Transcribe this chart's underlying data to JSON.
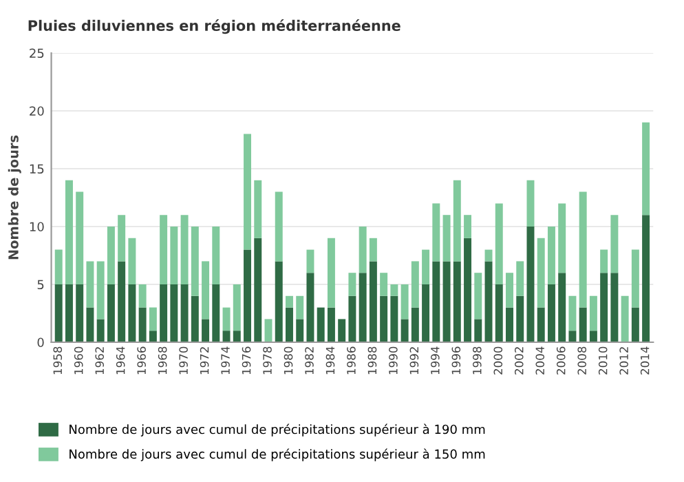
{
  "chart_data": {
    "type": "bar",
    "title": "Pluies diluviennes en région méditerranéenne",
    "ylabel": "Nombre de jours",
    "categories": [
      "1958",
      null,
      "1960",
      null,
      "1962",
      null,
      "1964",
      null,
      "1966",
      null,
      "1968",
      null,
      "1970",
      null,
      "1972",
      null,
      "1974",
      null,
      "1976",
      null,
      "1978",
      null,
      "1980",
      null,
      "1982",
      null,
      "1984",
      null,
      "1986",
      null,
      "1988",
      null,
      "1990",
      null,
      "1992",
      null,
      "1994",
      null,
      "1996",
      null,
      "1998",
      null,
      "2000",
      null,
      "2002",
      null,
      "2004",
      null,
      "2006",
      null,
      "2008",
      null,
      "2010",
      null,
      "2012",
      null,
      "2014"
    ],
    "stacked": true,
    "series": [
      {
        "name": "Nombre de jours avec cumul de précipitations supérieur à 190 mm",
        "color": "#2f6b45",
        "values": [
          5,
          5,
          5,
          3,
          2,
          5,
          7,
          5,
          3,
          1,
          5,
          5,
          5,
          4,
          2,
          5,
          1,
          1,
          8,
          9,
          0,
          7,
          3,
          2,
          6,
          3,
          3,
          2,
          4,
          6,
          7,
          4,
          4,
          2,
          3,
          5,
          7,
          7,
          7,
          9,
          2,
          7,
          5,
          3,
          4,
          10,
          3,
          5,
          6,
          1,
          3,
          1,
          6,
          6,
          0,
          3,
          11
        ]
      },
      {
        "name": "Nombre de jours avec cumul de précipitations supérieur à 150 mm",
        "color": "#80c99c",
        "values": [
          3,
          9,
          8,
          4,
          5,
          5,
          4,
          4,
          2,
          2,
          6,
          5,
          6,
          6,
          5,
          5,
          2,
          4,
          10,
          5,
          2,
          6,
          1,
          2,
          2,
          0,
          6,
          0,
          2,
          4,
          2,
          2,
          1,
          3,
          4,
          3,
          5,
          4,
          7,
          2,
          4,
          1,
          7,
          3,
          3,
          4,
          6,
          5,
          6,
          3,
          10,
          3,
          2,
          5,
          4,
          5,
          8
        ]
      }
    ],
    "ylim": [
      0,
      25
    ],
    "yticks": [
      0,
      5,
      10,
      15,
      20,
      25
    ],
    "grid": "y",
    "legend": "bottom"
  }
}
